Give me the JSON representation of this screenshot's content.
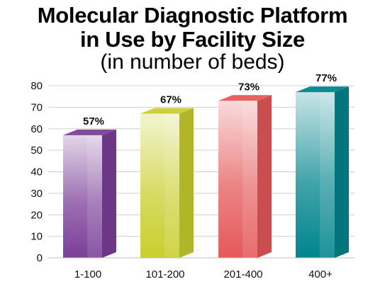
{
  "header": {
    "title_line1": "Molecular Diagnostic Platform",
    "title_line2": "in Use by Facility Size",
    "subtitle": "(in number of beds)"
  },
  "chart_data": {
    "type": "bar",
    "title": "Molecular Diagnostic Platform in Use by Facility Size",
    "subtitle": "(in number of beds)",
    "xlabel": "",
    "ylabel": "",
    "categories": [
      "1-100",
      "101-200",
      "201-400",
      "400+"
    ],
    "values": [
      57,
      67,
      73,
      77
    ],
    "data_labels": [
      "57%",
      "67%",
      "73%",
      "77%"
    ],
    "ylim": [
      0,
      80
    ],
    "yticks": [
      0,
      10,
      20,
      30,
      40,
      50,
      60,
      70,
      80
    ],
    "grid": true,
    "style": "3d-bars",
    "colors": [
      "#7b3f98",
      "#c9cf2f",
      "#e5595a",
      "#00858c"
    ]
  }
}
